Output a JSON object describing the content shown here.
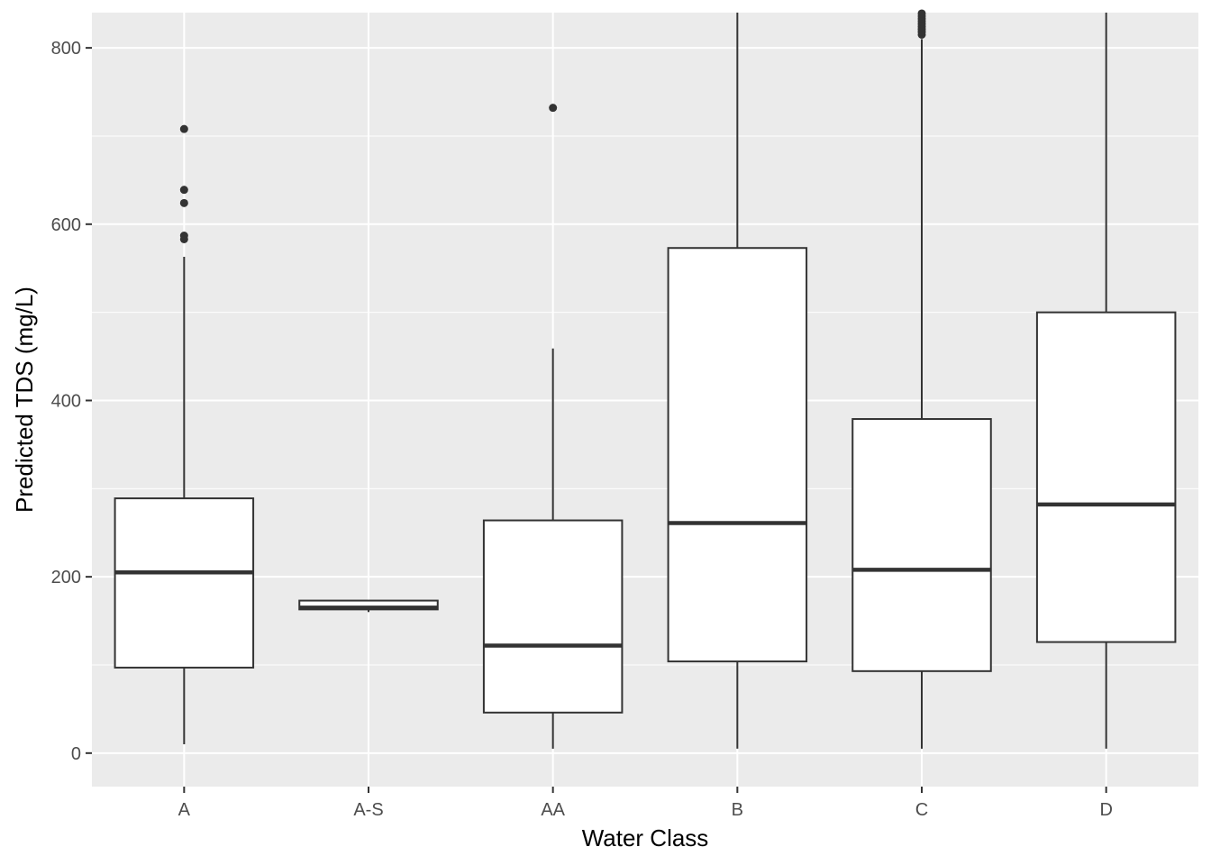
{
  "chart_data": {
    "type": "boxplot",
    "xlabel": "Water Class",
    "ylabel": "Predicted TDS (mg/L)",
    "categories": [
      "A",
      "A-S",
      "AA",
      "B",
      "C",
      "D"
    ],
    "ylim": [
      -38,
      840
    ],
    "yticks": [
      0,
      200,
      400,
      600,
      800
    ],
    "grid": true,
    "background": "#ebebeb",
    "gridline_color": "#ffffff",
    "box_fill": "#ffffff",
    "line_color": "#333333",
    "boxes": [
      {
        "category": "A",
        "whisker_low": 10,
        "q1": 97,
        "median": 205,
        "q3": 289,
        "whisker_high": 563,
        "outliers": [
          583,
          587,
          624,
          639,
          708
        ]
      },
      {
        "category": "A-S",
        "whisker_low": 160,
        "q1": 163,
        "median": 165,
        "q3": 173,
        "whisker_high": 173,
        "outliers": []
      },
      {
        "category": "AA",
        "whisker_low": 5,
        "q1": 46,
        "median": 122,
        "q3": 264,
        "whisker_high": 459,
        "outliers": [
          732
        ]
      },
      {
        "category": "B",
        "whisker_low": 5,
        "q1": 104,
        "median": 261,
        "q3": 573,
        "whisker_high": 840,
        "outliers": []
      },
      {
        "category": "C",
        "whisker_low": 5,
        "q1": 93,
        "median": 208,
        "q3": 379,
        "whisker_high": 810,
        "outliers": [
          815,
          818,
          821,
          824,
          827,
          830,
          833,
          836,
          839
        ]
      },
      {
        "category": "D",
        "whisker_low": 5,
        "q1": 126,
        "median": 282,
        "q3": 500,
        "whisker_high": 840,
        "outliers": []
      }
    ]
  }
}
